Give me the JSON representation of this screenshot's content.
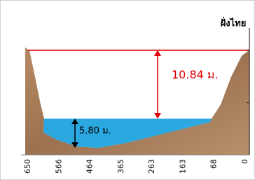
{
  "title": "ฝั่งไทย",
  "annotations": [
    {
      "label": "10.84 ม."
    },
    {
      "label": "5.80 ม."
    }
  ],
  "x_axis_labels": [
    "650",
    "566",
    "464",
    "365",
    "263",
    "163",
    "68",
    "0"
  ]
}
